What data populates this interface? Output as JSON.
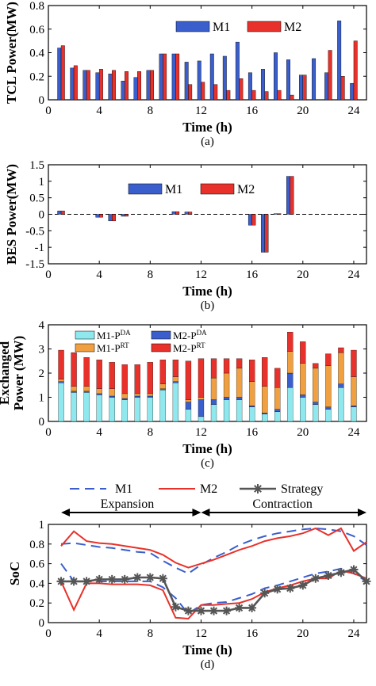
{
  "chart_data": [
    {
      "id": "a",
      "type": "bar",
      "x": [
        1,
        2,
        3,
        4,
        5,
        6,
        7,
        8,
        9,
        10,
        11,
        12,
        13,
        14,
        15,
        16,
        17,
        18,
        19,
        20,
        21,
        22,
        23,
        24
      ],
      "series": [
        {
          "name": "M1",
          "color": "#3a5fcd",
          "values": [
            0.44,
            0.27,
            0.25,
            0.23,
            0.22,
            0.16,
            0.19,
            0.25,
            0.39,
            0.39,
            0.32,
            0.33,
            0.39,
            0.37,
            0.49,
            0.23,
            0.26,
            0.4,
            0.34,
            0.21,
            0.35,
            0.23,
            0.67,
            0.14
          ]
        },
        {
          "name": "M2",
          "color": "#e8312a",
          "values": [
            0.46,
            0.29,
            0.25,
            0.26,
            0.25,
            0.24,
            0.24,
            0.25,
            0.39,
            0.39,
            0.13,
            0.15,
            0.13,
            0.08,
            0.18,
            0.08,
            0.07,
            0.08,
            0.04,
            0.21,
            0.0,
            0.42,
            0.2,
            0.5
          ]
        }
      ],
      "xlabel": "Time (h)",
      "ylabel": "TCL Power(MW)",
      "caption": "(a)",
      "xticks": [
        "0",
        "4",
        "8",
        "12",
        "16",
        "20",
        "24"
      ],
      "yticks": [
        "0",
        "0.2",
        "0.4",
        "0.6",
        "0.8"
      ],
      "xlim": [
        0,
        25
      ],
      "ylim": [
        0,
        0.8
      ],
      "legend": "top-right",
      "grid": false
    },
    {
      "id": "b",
      "type": "bar",
      "x": [
        1,
        2,
        3,
        4,
        5,
        6,
        7,
        8,
        9,
        10,
        11,
        12,
        13,
        14,
        15,
        16,
        17,
        18,
        19,
        20,
        21,
        22,
        23,
        24
      ],
      "series": [
        {
          "name": "M1",
          "color": "#3a5fcd",
          "values": [
            0.1,
            0,
            0,
            -0.09,
            -0.2,
            -0.06,
            0,
            0,
            0,
            0.08,
            0.07,
            0,
            0,
            0,
            0,
            -0.33,
            -1.15,
            0.02,
            1.15,
            0,
            0,
            0,
            0,
            0
          ]
        },
        {
          "name": "M2",
          "color": "#e8312a",
          "values": [
            0.1,
            0,
            0,
            -0.09,
            -0.2,
            -0.06,
            0,
            0,
            0,
            0.08,
            0.07,
            0,
            0,
            0,
            0,
            -0.33,
            -1.15,
            0.02,
            1.15,
            0,
            0,
            0,
            0,
            0
          ]
        }
      ],
      "xlabel": "Time (h)",
      "ylabel": "BES Power(MW)",
      "caption": "(b)",
      "xticks": [
        "0",
        "4",
        "8",
        "12",
        "16",
        "20",
        "24"
      ],
      "yticks": [
        "-1.5",
        "-1",
        "-0.5",
        "0",
        "0.5",
        "1",
        "1.5"
      ],
      "xlim": [
        0,
        25
      ],
      "ylim": [
        -1.5,
        1.5
      ],
      "legend": "top-center",
      "grid": false
    },
    {
      "id": "c",
      "type": "bar",
      "stacked": true,
      "x": [
        1,
        2,
        3,
        4,
        5,
        6,
        7,
        8,
        9,
        10,
        11,
        12,
        13,
        14,
        15,
        16,
        17,
        18,
        19,
        20,
        21,
        22,
        23,
        24
      ],
      "series": [
        {
          "name": "M1-P",
          "sup": "DA",
          "color": "#8ee8ee",
          "values": [
            1.6,
            1.2,
            1.2,
            1.1,
            1.0,
            0.9,
            1.0,
            1.0,
            1.3,
            1.6,
            0.5,
            0.2,
            0.7,
            0.9,
            0.9,
            0.6,
            0.3,
            0.4,
            1.4,
            1.0,
            0.7,
            0.5,
            1.4,
            0.6
          ]
        },
        {
          "name": "M2-P",
          "sup": "DA",
          "color": "#3a5fcd",
          "values": [
            0.05,
            0.05,
            0.05,
            0.05,
            0.05,
            0.05,
            0.05,
            0.05,
            0.05,
            0.05,
            0.3,
            0.7,
            0.2,
            0.1,
            0.1,
            0.05,
            0.05,
            0.1,
            0.6,
            0.1,
            0.1,
            0.1,
            0.15,
            0.05
          ]
        },
        {
          "name": "M1-P",
          "sup": "RT",
          "color": "#f0a040",
          "values": [
            0.1,
            0.2,
            0.2,
            0.2,
            0.3,
            0.2,
            0.1,
            0.1,
            0.2,
            0.2,
            0.1,
            0.1,
            0.9,
            1.0,
            1.2,
            1.0,
            1.1,
            0.9,
            0.9,
            1.3,
            1.4,
            1.7,
            1.3,
            1.2
          ]
        },
        {
          "name": "M2-P",
          "sup": "RT",
          "color": "#e8312a",
          "values": [
            1.2,
            1.4,
            1.2,
            1.2,
            1.1,
            1.2,
            1.2,
            1.3,
            1.0,
            0.7,
            1.6,
            1.6,
            0.8,
            0.6,
            0.4,
            0.9,
            1.2,
            0.8,
            0.8,
            0.9,
            0.2,
            0.5,
            0.2,
            1.1
          ]
        }
      ],
      "xlabel": "Time (h)",
      "ylabel": [
        "Exchanged",
        "Power (MW)"
      ],
      "caption": "(c)",
      "xticks": [
        "0",
        "4",
        "8",
        "12",
        "16",
        "20",
        "24"
      ],
      "yticks": [
        "0",
        "1",
        "2",
        "3",
        "4"
      ],
      "xlim": [
        0,
        25
      ],
      "ylim": [
        0,
        4
      ],
      "legend": "top-left",
      "grid": false
    },
    {
      "id": "d",
      "type": "line",
      "x": [
        1,
        2,
        3,
        4,
        5,
        6,
        7,
        8,
        9,
        10,
        11,
        12,
        13,
        14,
        15,
        16,
        17,
        18,
        19,
        20,
        21,
        22,
        23,
        24,
        25
      ],
      "series": [
        {
          "name": "M1",
          "color": "#3a5fcd",
          "style": "dashed",
          "values": [
            0.8,
            0.81,
            0.79,
            0.77,
            0.76,
            0.74,
            0.72,
            0.71,
            0.63,
            0.56,
            0.5,
            0.59,
            0.66,
            0.72,
            0.79,
            0.84,
            0.88,
            0.91,
            0.93,
            0.95,
            0.96,
            0.95,
            0.93,
            0.88,
            0.79
          ]
        },
        {
          "name": "M2",
          "color": "#e8312a",
          "style": "solid",
          "values": [
            0.78,
            0.93,
            0.83,
            0.81,
            0.8,
            0.78,
            0.76,
            0.74,
            0.69,
            0.61,
            0.56,
            0.6,
            0.64,
            0.69,
            0.74,
            0.78,
            0.83,
            0.86,
            0.88,
            0.91,
            0.96,
            0.89,
            0.96,
            0.73,
            0.82
          ]
        },
        {
          "name": "M1",
          "color": "#3a5fcd",
          "style": "dashed",
          "values": [
            0.6,
            0.42,
            0.42,
            0.42,
            0.42,
            0.42,
            0.42,
            0.42,
            0.36,
            0.25,
            0.09,
            0.18,
            0.2,
            0.21,
            0.25,
            0.29,
            0.35,
            0.38,
            0.42,
            0.46,
            0.5,
            0.52,
            0.55,
            0.5,
            0.42
          ]
        },
        {
          "name": "M2",
          "color": "#e8312a",
          "style": "solid",
          "values": [
            0.42,
            0.13,
            0.4,
            0.4,
            0.39,
            0.39,
            0.39,
            0.38,
            0.33,
            0.05,
            0.04,
            0.18,
            0.18,
            0.19,
            0.2,
            0.24,
            0.31,
            0.35,
            0.38,
            0.42,
            0.45,
            0.45,
            0.53,
            0.5,
            0.45
          ]
        },
        {
          "name": "Strategy",
          "color": "#555555",
          "style": "solid-star",
          "values": [
            0.42,
            0.42,
            0.42,
            0.44,
            0.44,
            0.44,
            0.46,
            0.46,
            0.45,
            0.16,
            0.12,
            0.12,
            0.12,
            0.12,
            0.15,
            0.15,
            0.3,
            0.34,
            0.35,
            0.38,
            0.45,
            0.48,
            0.51,
            0.54,
            0.42
          ]
        }
      ],
      "xlabel": "Time (h)",
      "ylabel": "SoC",
      "caption": "(d)",
      "xticks": [
        "0",
        "4",
        "8",
        "12",
        "16",
        "20",
        "24"
      ],
      "yticks": [
        "0",
        "0.2",
        "0.4",
        "0.6",
        "0.8",
        "1"
      ],
      "xlim": [
        0,
        25
      ],
      "ylim": [
        0,
        1
      ],
      "legend": "top",
      "annotations": [
        "Expansion",
        "Contraction"
      ],
      "grid": false
    }
  ]
}
